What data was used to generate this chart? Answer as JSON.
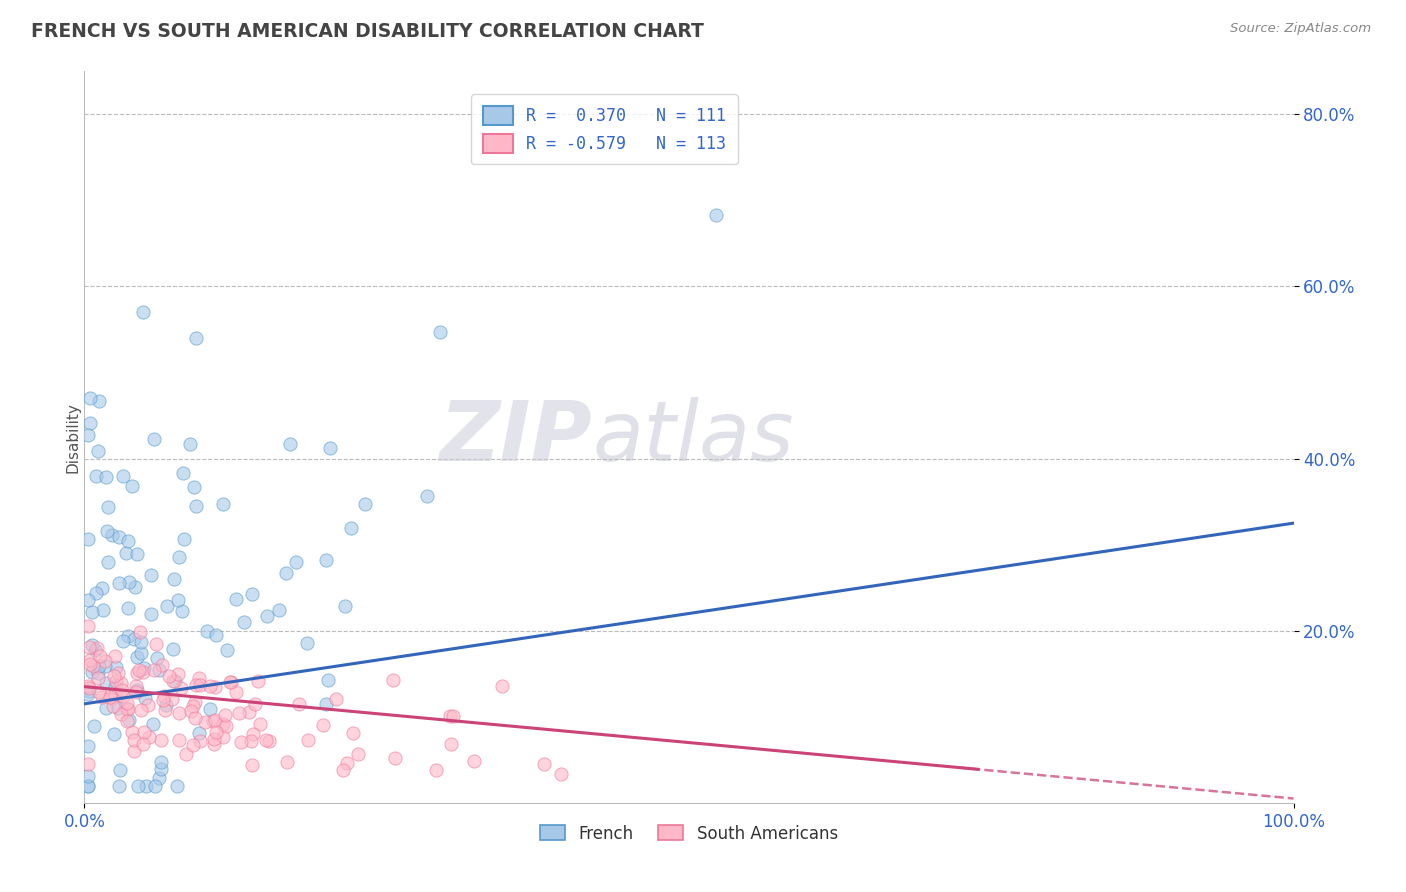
{
  "title": "FRENCH VS SOUTH AMERICAN DISABILITY CORRELATION CHART",
  "source": "Source: ZipAtlas.com",
  "ylabel": "Disability",
  "xlim": [
    0,
    1.0
  ],
  "ylim": [
    0,
    0.85
  ],
  "ytick_values": [
    0.2,
    0.4,
    0.6,
    0.8
  ],
  "ytick_labels": [
    "20.0%",
    "40.0%",
    "60.0%",
    "80.0%"
  ],
  "french_color": "#A8C8E8",
  "french_edge": "#5599CC",
  "south_color": "#FFB8C8",
  "south_edge": "#EE7799",
  "french_R": 0.37,
  "french_N": 111,
  "south_R": -0.579,
  "south_N": 113,
  "trend_blue": "#3366BB",
  "trend_pink": "#CC4477",
  "background": "#FFFFFF",
  "grid_color": "#BBBBBB",
  "title_color": "#444444",
  "label_color": "#3366CC",
  "watermark_zip_color": "#CCCCDD",
  "watermark_atlas_color": "#BBBBCC"
}
